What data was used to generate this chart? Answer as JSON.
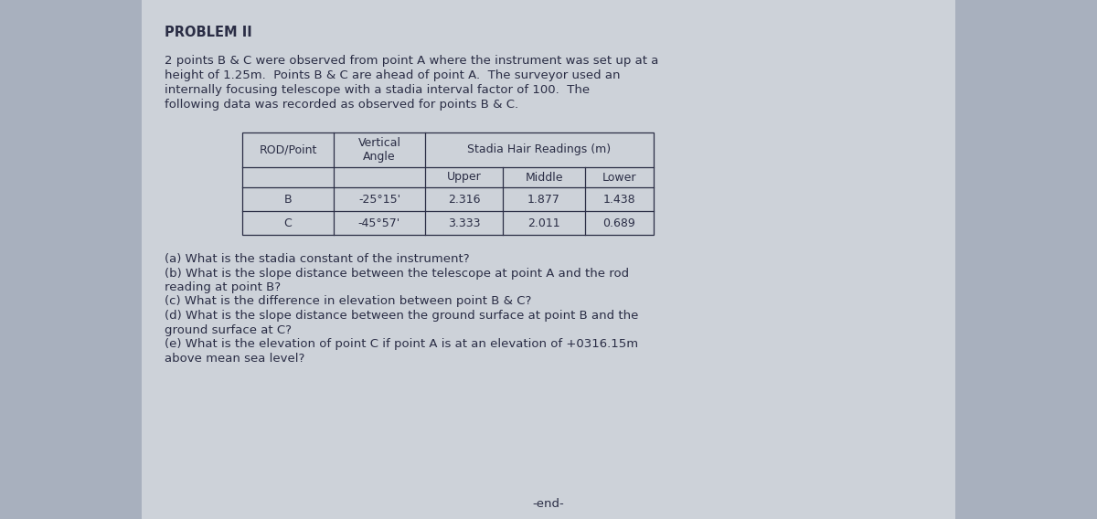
{
  "bg_color": "#a8b0be",
  "paper_color": "#cdd2d9",
  "text_color": "#2a2d45",
  "title": "PROBLEM II",
  "para_lines": [
    "2 points B & C were observed from point A where the instrument was set up at a",
    "height of 1.25m.  Points B & C are ahead of point A.  The surveyor used an",
    "internally focusing telescope with a stadia interval factor of 100.  The",
    "following data was recorded as observed for points B & C."
  ],
  "table_data": [
    [
      "B",
      "-25°15'",
      "2.316",
      "1.877",
      "1.438"
    ],
    [
      "C",
      "-45°57'",
      "3.333",
      "2.011",
      "0.689"
    ]
  ],
  "question_lines": [
    "(a) What is the stadia constant of the instrument?",
    "(b) What is the slope distance between the telescope at point A and the rod",
    "reading at point B?",
    "(c) What is the difference in elevation between point B & C?",
    "(d) What is the slope distance between the ground surface at point B and the",
    "ground surface at C?",
    "(e) What is the elevation of point C if point A is at an elevation of +0316.15m",
    "above mean sea level?"
  ],
  "end_text": "-end-",
  "font_size_title": 10.5,
  "font_size_body": 9.5,
  "font_size_table": 9.0
}
